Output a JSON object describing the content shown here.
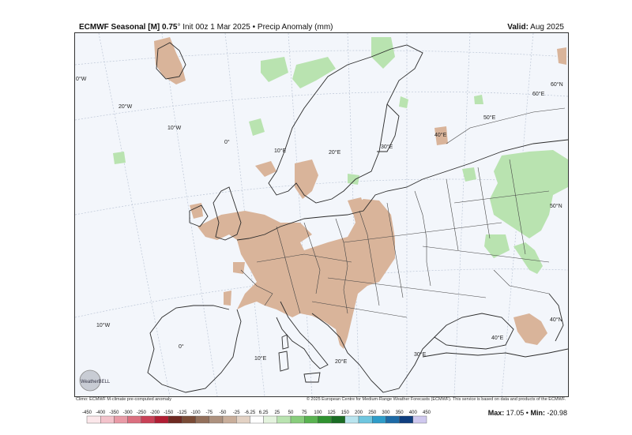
{
  "header": {
    "model": "ECMWF Seasonal [M] 0.75",
    "degree": "°",
    "subtitle": "Init 00z 1 Mar 2025 • Precip Anomaly (mm)",
    "valid_label": "Valid:",
    "valid_value": "Aug 2025"
  },
  "map": {
    "longitude_labels": [
      "0°W",
      "20°W",
      "10°W",
      "0°",
      "10°E",
      "20°E",
      "30°E",
      "40°E",
      "50°E",
      "60°E",
      "60°N",
      "50°N",
      "40°N",
      "40°E",
      "10°W",
      "0°",
      "10°E",
      "20°E",
      "30°E"
    ],
    "colors": {
      "dry": "#d9b49a",
      "wet": "#b9e3b0",
      "background": "#f3f6fb",
      "land": "#f3f6fb",
      "border": "#2b2b2b"
    },
    "regions": [
      {
        "label": "Dry anomaly (central & eastern Europe)",
        "type": "dry"
      },
      {
        "label": "Wet anomaly (western Russia)",
        "type": "wet"
      }
    ]
  },
  "colorbar": {
    "ticks": [
      "-450",
      "-400",
      "-350",
      "-300",
      "-250",
      "-200",
      "-150",
      "-125",
      "-100",
      "-75",
      "-50",
      "-25",
      "-6.25",
      "6.25",
      "25",
      "50",
      "75",
      "100",
      "125",
      "150",
      "200",
      "250",
      "300",
      "350",
      "400",
      "450"
    ],
    "colors": [
      "#fbe7ea",
      "#f3c3cb",
      "#e99aa6",
      "#db6f7f",
      "#c94157",
      "#b11e33",
      "#6e2a22",
      "#7a4b36",
      "#93705b",
      "#ad917e",
      "#c9ae9a",
      "#e3d2c4",
      "#ffffff",
      "#e4f3de",
      "#b9e3b0",
      "#88cd7c",
      "#59b350",
      "#2f9230",
      "#1a6d24",
      "#b9e4ee",
      "#6fc6df",
      "#2e9cc9",
      "#1d6aa6",
      "#0f3e7f",
      "#cfc8ee"
    ]
  },
  "stats": {
    "max_label": "Max:",
    "max_value": "17.05",
    "separator": "•",
    "min_label": "Min:",
    "min_value": "-20.98"
  },
  "credits": {
    "left": "Climo: ECMWF M-climate pre-computed anomaly",
    "right": "© 2025 European Centre for Medium-Range Weather Forecasts (ECMWF). This service is based on data and products of the ECMWF."
  },
  "logo": {
    "icon": "weatherbell-logo",
    "text": "WeatherBELL"
  }
}
